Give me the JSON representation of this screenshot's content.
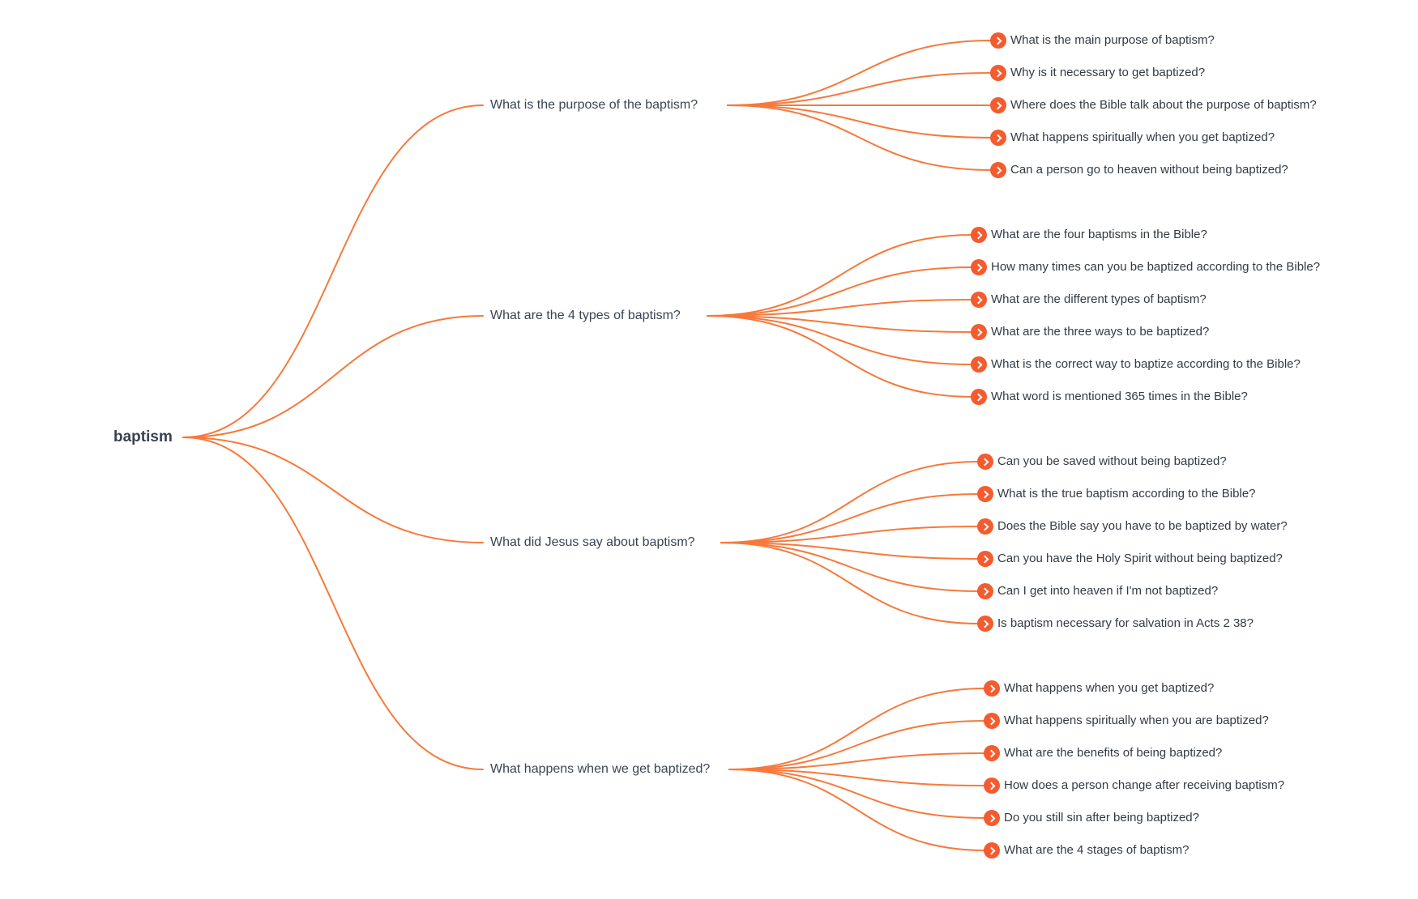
{
  "root": {
    "label": "baptism"
  },
  "colors": {
    "line": "#f6793b",
    "node_circle": "#f45b2e",
    "root_text": "#39414e",
    "branch_text": "#3b4452",
    "leaf_text": "#333a43"
  },
  "icons": {
    "leaf_bullet": "chevron-right-icon"
  },
  "tree": {
    "branches": [
      {
        "label": "What is the purpose of the baptism?",
        "children": [
          "What is the main purpose of baptism?",
          "Why is it necessary to get baptized?",
          "Where does the Bible talk about the purpose of baptism?",
          "What happens spiritually when you get baptized?",
          "Can a person go to heaven without being baptized?"
        ]
      },
      {
        "label": "What are the 4 types of baptism?",
        "children": [
          "What are the four baptisms in the Bible?",
          "How many times can you be baptized according to the Bible?",
          "What are the different types of baptism?",
          "What are the three ways to be baptized?",
          "What is the correct way to baptize according to the Bible?",
          "What word is mentioned 365 times in the Bible?"
        ]
      },
      {
        "label": "What did Jesus say about baptism?",
        "children": [
          "Can you be saved without being baptized?",
          "What is the true baptism according to the Bible?",
          "Does the Bible say you have to be baptized by water?",
          "Can you have the Holy Spirit without being baptized?",
          "Can I get into heaven if I'm not baptized?",
          "Is baptism necessary for salvation in Acts 2 38?"
        ]
      },
      {
        "label": "What happens when we get baptized?",
        "children": [
          "What happens when you get baptized?",
          "What happens spiritually when you are baptized?",
          "What are the benefits of being baptized?",
          "How does a person change after receiving baptism?",
          "Do you still sin after being baptized?",
          "What are the 4 stages of baptism?"
        ]
      }
    ]
  }
}
